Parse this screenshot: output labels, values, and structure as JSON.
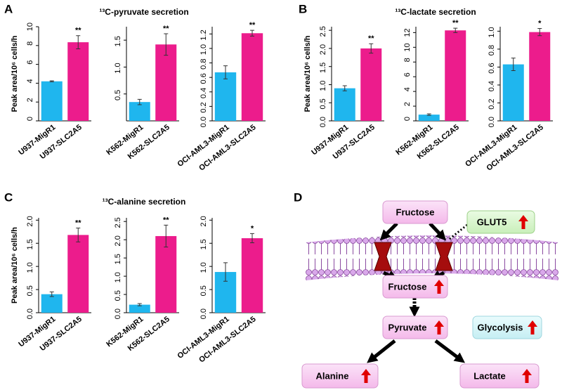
{
  "panels": [
    {
      "label": "A",
      "title": "¹³C-pyruvate secretion"
    },
    {
      "label": "B",
      "title": "¹³C-lactate secretion"
    },
    {
      "label": "C",
      "title": "¹³C-alanine secretion"
    }
  ],
  "chart_data": [
    {
      "type": "bar",
      "ylabel": "Peak area/10⁶ cells/h",
      "categories": [
        "U937-MigR1",
        "U937-SLC2A5"
      ],
      "values": [
        4.2,
        8.35
      ],
      "errors": [
        0.05,
        0.7
      ],
      "colors": [
        "#1fb6ee",
        "#ec1c8c"
      ],
      "ylim": [
        0,
        10
      ],
      "yticks": [
        0,
        2,
        4,
        6,
        8,
        10
      ],
      "annotation": "**"
    },
    {
      "type": "bar",
      "categories": [
        "K562-MigR1",
        "K562-SLC2A5"
      ],
      "values": [
        0.35,
        1.42
      ],
      "errors": [
        0.05,
        0.2
      ],
      "colors": [
        "#1fb6ee",
        "#ec1c8c"
      ],
      "ylim": [
        0,
        1.75
      ],
      "yticks": [
        0.5,
        {
          "value": 1,
          "label": "1.0"
        },
        1.5
      ],
      "annotation": "**"
    },
    {
      "type": "bar",
      "categories": [
        "OCI-AML3-MigR1",
        "OCI-AML3-SLC2A5"
      ],
      "values": [
        0.67,
        1.21
      ],
      "errors": [
        0.09,
        0.04
      ],
      "colors": [
        "#1fb6ee",
        "#ec1c8c"
      ],
      "ylim": [
        0,
        1.3
      ],
      "yticks": [
        {
          "value": 0,
          "label": "0.0"
        },
        0.2,
        0.4,
        0.6,
        0.8,
        {
          "value": 1,
          "label": "1.0"
        },
        1.2
      ],
      "annotation": "**"
    },
    {
      "type": "bar",
      "ylabel": "Peak area/10⁶ cells/h",
      "categories": [
        "U937-MigR1",
        "U937-SLC2A5"
      ],
      "values": [
        0.9,
        2.0
      ],
      "errors": [
        0.07,
        0.13
      ],
      "colors": [
        "#1fb6ee",
        "#ec1c8c"
      ],
      "ylim": [
        0,
        2.6
      ],
      "yticks": [
        {
          "value": 0,
          "label": "0.0"
        },
        0.5,
        {
          "value": 1,
          "label": "1.0"
        },
        1.5,
        {
          "value": 2,
          "label": "2.0"
        },
        2.5
      ],
      "annotation": "**"
    },
    {
      "type": "bar",
      "categories": [
        "K562-MigR1",
        "K562-SLC2A5"
      ],
      "values": [
        0.85,
        12.3
      ],
      "errors": [
        0.1,
        0.3
      ],
      "colors": [
        "#1fb6ee",
        "#ec1c8c"
      ],
      "ylim": [
        0,
        12.8
      ],
      "yticks": [
        0,
        2,
        4,
        6,
        8,
        10,
        12
      ],
      "annotation": "**"
    },
    {
      "type": "bar",
      "categories": [
        "OCI-AML3-MigR1",
        "OCI-AML3-SLC2A5"
      ],
      "values": [
        0.63,
        0.99
      ],
      "errors": [
        0.07,
        0.04
      ],
      "colors": [
        "#1fb6ee",
        "#ec1c8c"
      ],
      "ylim": [
        0,
        1.05
      ],
      "yticks": [
        {
          "value": 0,
          "label": "0.0"
        },
        0.2,
        0.4,
        0.6,
        0.8,
        {
          "value": 1,
          "label": "1.0"
        }
      ],
      "annotation": "*"
    },
    {
      "type": "bar",
      "ylabel": "Peak area/10⁶ cells/h",
      "categories": [
        "U937-MigR1",
        "U937-SLC2A5"
      ],
      "values": [
        0.4,
        1.68
      ],
      "errors": [
        0.05,
        0.15
      ],
      "colors": [
        "#1fb6ee",
        "#ec1c8c"
      ],
      "ylim": [
        0,
        2.05
      ],
      "yticks": [
        {
          "value": 0,
          "label": "0.0"
        },
        0.5,
        {
          "value": 1,
          "label": "1.0"
        },
        1.5,
        {
          "value": 2,
          "label": "2.0"
        }
      ],
      "annotation": "**"
    },
    {
      "type": "bar",
      "categories": [
        "K562-MigR1",
        "K562-SLC2A5"
      ],
      "values": [
        0.22,
        2.1
      ],
      "errors": [
        0.03,
        0.3
      ],
      "colors": [
        "#1fb6ee",
        "#ec1c8c"
      ],
      "ylim": [
        0,
        2.6
      ],
      "yticks": [
        {
          "value": 0,
          "label": "0.0"
        },
        0.5,
        {
          "value": 1,
          "label": "1.0"
        },
        1.5,
        {
          "value": 2,
          "label": "2.0"
        },
        2.5
      ],
      "annotation": "**"
    },
    {
      "type": "bar",
      "categories": [
        "OCI-AML3-MigR1",
        "OCI-AML3-SLC2A5"
      ],
      "values": [
        0.88,
        1.61
      ],
      "errors": [
        0.2,
        0.1
      ],
      "colors": [
        "#1fb6ee",
        "#ec1c8c"
      ],
      "ylim": [
        0,
        2.05
      ],
      "yticks": [
        {
          "value": 0,
          "label": "0.0"
        },
        0.5,
        {
          "value": 1,
          "label": "1.0"
        },
        1.5,
        {
          "value": 2,
          "label": "2.0"
        }
      ],
      "annotation": "*"
    }
  ],
  "diagram": {
    "label": "D",
    "nodes": [
      {
        "label": "Fructose"
      },
      {
        "label": "GLUT5"
      },
      {
        "label": "Fructose"
      },
      {
        "label": "Pyruvate"
      },
      {
        "label": "Glycolysis"
      },
      {
        "label": "Alanine"
      },
      {
        "label": "Lactate"
      }
    ]
  }
}
